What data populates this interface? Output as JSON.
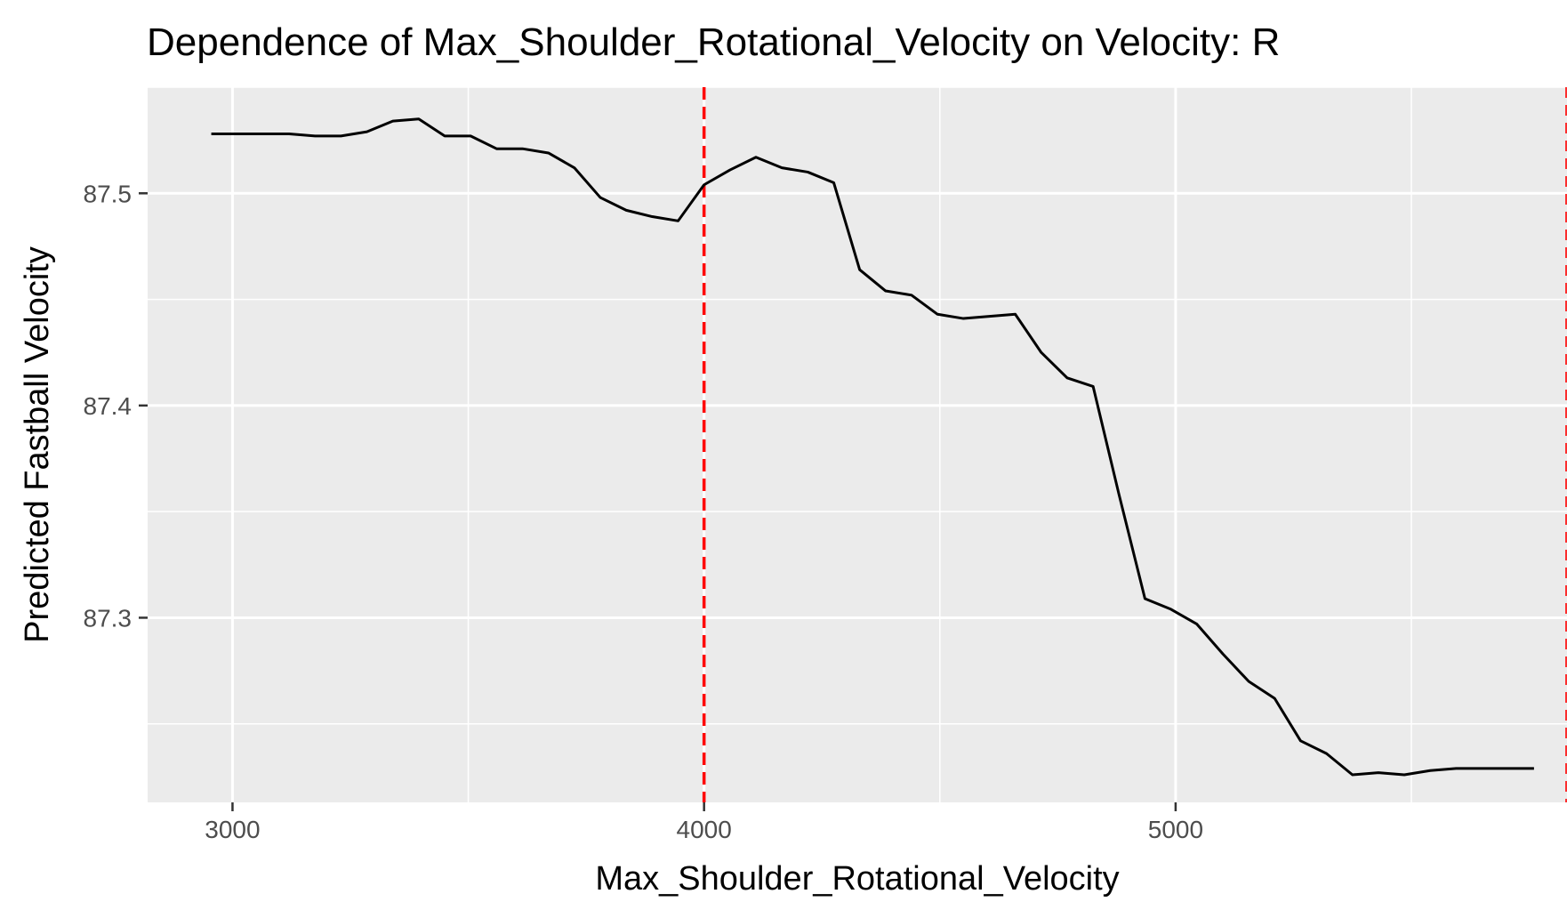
{
  "chart_data": {
    "type": "line",
    "title": "Dependence of Max_Shoulder_Rotational_Velocity on Velocity: R",
    "xlabel": "Max_Shoulder_Rotational_Velocity",
    "ylabel": "Predicted Fastball Velocity",
    "xlim": [
      2820,
      5830
    ],
    "ylim": [
      87.213,
      87.55
    ],
    "x_ticks": [
      3000,
      4000,
      5000
    ],
    "x_tick_labels": [
      "3000",
      "4000",
      "5000"
    ],
    "y_ticks": [
      87.3,
      87.4,
      87.5
    ],
    "y_tick_labels": [
      "87.3",
      "87.4",
      "87.5"
    ],
    "grid": true,
    "series": [
      {
        "color": "#000000",
        "x": [
          2955,
          3010,
          3065,
          3120,
          3175,
          3230,
          3285,
          3340,
          3395,
          3450,
          3505,
          3560,
          3615,
          3670,
          3725,
          3780,
          3835,
          3890,
          3945,
          4000,
          4055,
          4110,
          4165,
          4220,
          4275,
          4330,
          4385,
          4440,
          4495,
          4550,
          4605,
          4660,
          4715,
          4770,
          4825,
          4880,
          4935,
          4990,
          5045,
          5100,
          5155,
          5210,
          5265,
          5320,
          5375,
          5430,
          5485,
          5540,
          5595,
          5650,
          5705,
          5760
        ],
        "y": [
          87.528,
          87.528,
          87.528,
          87.528,
          87.527,
          87.527,
          87.529,
          87.534,
          87.535,
          87.527,
          87.527,
          87.521,
          87.521,
          87.519,
          87.512,
          87.498,
          87.492,
          87.489,
          87.487,
          87.504,
          87.511,
          87.517,
          87.512,
          87.51,
          87.505,
          87.464,
          87.454,
          87.452,
          87.443,
          87.441,
          87.442,
          87.443,
          87.425,
          87.413,
          87.409,
          87.358,
          87.309,
          87.304,
          87.297,
          87.283,
          87.27,
          87.262,
          87.242,
          87.236,
          87.226,
          87.227,
          87.226,
          87.228,
          87.229,
          87.229,
          87.229,
          87.229
        ]
      }
    ],
    "reference_lines": [
      {
        "axis": "x",
        "value": 4000,
        "color": "#ff0000",
        "style": "dashed"
      },
      {
        "axis": "x",
        "value": 5830,
        "color": "#ff0000",
        "style": "dashed"
      }
    ],
    "colors": {
      "panel_background": "#ebebeb",
      "grid": "#ffffff",
      "line": "#000000",
      "reference": "#ff0000",
      "tick_text": "#4d4d4d"
    }
  }
}
